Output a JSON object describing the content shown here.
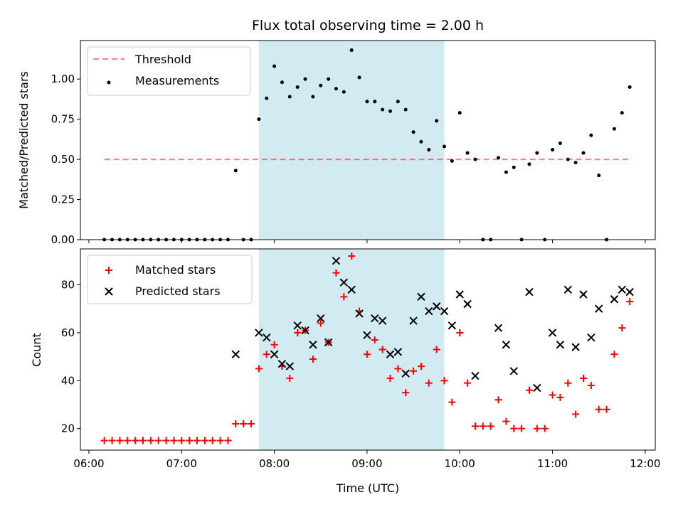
{
  "title": "Flux total observing time = 2.00 h",
  "colors": {
    "shade": "#add8e6",
    "threshold": "#ff0000",
    "measurement": "#000000",
    "matched": "#ff0000",
    "predicted": "#000000"
  },
  "chart_data": [
    {
      "type": "scatter",
      "ylabel": "Matched/Predicted stars",
      "ylim": [
        0,
        1.24
      ],
      "xlim": [
        "06:00",
        "12:00"
      ],
      "shaded_interval": [
        "07:50",
        "09:50"
      ],
      "yticks": [
        "0.00",
        "0.25",
        "0.50",
        "0.75",
        "1.00"
      ],
      "legend_position": "top-left",
      "threshold": {
        "name": "Threshold",
        "value": 0.5,
        "x_range": [
          "06:10",
          "11:50"
        ]
      },
      "series": [
        {
          "name": "Measurements",
          "points": [
            [
              "06:10",
              0
            ],
            [
              "06:15",
              0
            ],
            [
              "06:20",
              0
            ],
            [
              "06:25",
              0
            ],
            [
              "06:30",
              0
            ],
            [
              "06:35",
              0
            ],
            [
              "06:40",
              0
            ],
            [
              "06:45",
              0
            ],
            [
              "06:50",
              0
            ],
            [
              "06:55",
              0
            ],
            [
              "07:00",
              0
            ],
            [
              "07:05",
              0
            ],
            [
              "07:10",
              0
            ],
            [
              "07:15",
              0
            ],
            [
              "07:20",
              0
            ],
            [
              "07:25",
              0
            ],
            [
              "07:30",
              0
            ],
            [
              "07:35",
              0.43
            ],
            [
              "07:40",
              0
            ],
            [
              "07:45",
              0
            ],
            [
              "07:50",
              0.75
            ],
            [
              "07:55",
              0.88
            ],
            [
              "08:00",
              1.08
            ],
            [
              "08:05",
              0.98
            ],
            [
              "08:10",
              0.89
            ],
            [
              "08:15",
              0.95
            ],
            [
              "08:20",
              1.0
            ],
            [
              "08:25",
              0.89
            ],
            [
              "08:30",
              0.96
            ],
            [
              "08:35",
              1.0
            ],
            [
              "08:40",
              0.94
            ],
            [
              "08:45",
              0.92
            ],
            [
              "08:50",
              1.18
            ],
            [
              "08:55",
              1.01
            ],
            [
              "09:00",
              0.86
            ],
            [
              "09:05",
              0.86
            ],
            [
              "09:10",
              0.81
            ],
            [
              "09:15",
              0.8
            ],
            [
              "09:20",
              0.86
            ],
            [
              "09:25",
              0.81
            ],
            [
              "09:30",
              0.67
            ],
            [
              "09:35",
              0.61
            ],
            [
              "09:40",
              0.56
            ],
            [
              "09:45",
              0.74
            ],
            [
              "09:50",
              0.58
            ],
            [
              "09:55",
              0.49
            ],
            [
              "10:00",
              0.79
            ],
            [
              "10:05",
              0.54
            ],
            [
              "10:10",
              0.5
            ],
            [
              "10:15",
              0
            ],
            [
              "10:20",
              0
            ],
            [
              "10:25",
              0.51
            ],
            [
              "10:30",
              0.42
            ],
            [
              "10:35",
              0.45
            ],
            [
              "10:40",
              0
            ],
            [
              "10:45",
              0.47
            ],
            [
              "10:50",
              0.54
            ],
            [
              "10:55",
              0
            ],
            [
              "11:00",
              0.56
            ],
            [
              "11:05",
              0.6
            ],
            [
              "11:10",
              0.5
            ],
            [
              "11:15",
              0.48
            ],
            [
              "11:20",
              0.54
            ],
            [
              "11:25",
              0.65
            ],
            [
              "11:30",
              0.4
            ],
            [
              "11:35",
              0
            ],
            [
              "11:40",
              0.69
            ],
            [
              "11:45",
              0.79
            ],
            [
              "11:50",
              0.95
            ]
          ]
        }
      ]
    },
    {
      "type": "scatter",
      "xlabel": "Time (UTC)",
      "ylabel": "Count",
      "ylim": [
        11,
        95
      ],
      "xlim": [
        "06:00",
        "12:00"
      ],
      "shaded_interval": [
        "07:50",
        "09:50"
      ],
      "xticks": [
        "06:00",
        "07:00",
        "08:00",
        "09:00",
        "10:00",
        "11:00",
        "12:00"
      ],
      "yticks": [
        "20",
        "40",
        "60",
        "80"
      ],
      "legend_position": "top-left",
      "series": [
        {
          "name": "Matched stars",
          "points": [
            [
              "06:10",
              15
            ],
            [
              "06:15",
              15
            ],
            [
              "06:20",
              15
            ],
            [
              "06:25",
              15
            ],
            [
              "06:30",
              15
            ],
            [
              "06:35",
              15
            ],
            [
              "06:40",
              15
            ],
            [
              "06:45",
              15
            ],
            [
              "06:50",
              15
            ],
            [
              "06:55",
              15
            ],
            [
              "07:00",
              15
            ],
            [
              "07:05",
              15
            ],
            [
              "07:10",
              15
            ],
            [
              "07:15",
              15
            ],
            [
              "07:20",
              15
            ],
            [
              "07:25",
              15
            ],
            [
              "07:30",
              15
            ],
            [
              "07:35",
              22
            ],
            [
              "07:40",
              22
            ],
            [
              "07:45",
              22
            ],
            [
              "07:50",
              45
            ],
            [
              "07:55",
              51
            ],
            [
              "08:00",
              55
            ],
            [
              "08:05",
              46
            ],
            [
              "08:10",
              41
            ],
            [
              "08:15",
              60
            ],
            [
              "08:20",
              61
            ],
            [
              "08:25",
              49
            ],
            [
              "08:30",
              64
            ],
            [
              "08:35",
              56
            ],
            [
              "08:40",
              85
            ],
            [
              "08:45",
              75
            ],
            [
              "08:50",
              92
            ],
            [
              "08:55",
              69
            ],
            [
              "09:00",
              51
            ],
            [
              "09:05",
              57
            ],
            [
              "09:10",
              53
            ],
            [
              "09:15",
              41
            ],
            [
              "09:20",
              45
            ],
            [
              "09:25",
              35
            ],
            [
              "09:30",
              44
            ],
            [
              "09:35",
              46
            ],
            [
              "09:40",
              39
            ],
            [
              "09:45",
              53
            ],
            [
              "09:50",
              40
            ],
            [
              "09:55",
              31
            ],
            [
              "10:00",
              60
            ],
            [
              "10:05",
              39
            ],
            [
              "10:10",
              21
            ],
            [
              "10:15",
              21
            ],
            [
              "10:20",
              21
            ],
            [
              "10:25",
              32
            ],
            [
              "10:30",
              23
            ],
            [
              "10:35",
              20
            ],
            [
              "10:40",
              20
            ],
            [
              "10:45",
              36
            ],
            [
              "10:50",
              20
            ],
            [
              "10:55",
              20
            ],
            [
              "11:00",
              34
            ],
            [
              "11:05",
              33
            ],
            [
              "11:10",
              39
            ],
            [
              "11:15",
              26
            ],
            [
              "11:20",
              41
            ],
            [
              "11:25",
              38
            ],
            [
              "11:30",
              28
            ],
            [
              "11:35",
              28
            ],
            [
              "11:40",
              51
            ],
            [
              "11:45",
              62
            ],
            [
              "11:50",
              73
            ]
          ]
        },
        {
          "name": "Predicted stars",
          "points": [
            [
              "07:35",
              51
            ],
            [
              "07:50",
              60
            ],
            [
              "07:55",
              58
            ],
            [
              "08:00",
              51
            ],
            [
              "08:05",
              47
            ],
            [
              "08:10",
              46
            ],
            [
              "08:15",
              63
            ],
            [
              "08:20",
              61
            ],
            [
              "08:25",
              55
            ],
            [
              "08:30",
              66
            ],
            [
              "08:35",
              56
            ],
            [
              "08:40",
              90
            ],
            [
              "08:45",
              81
            ],
            [
              "08:50",
              78
            ],
            [
              "08:55",
              68
            ],
            [
              "09:00",
              59
            ],
            [
              "09:05",
              66
            ],
            [
              "09:10",
              65
            ],
            [
              "09:15",
              51
            ],
            [
              "09:20",
              52
            ],
            [
              "09:25",
              43
            ],
            [
              "09:30",
              65
            ],
            [
              "09:35",
              75
            ],
            [
              "09:40",
              69
            ],
            [
              "09:45",
              71
            ],
            [
              "09:50",
              69
            ],
            [
              "09:55",
              63
            ],
            [
              "10:00",
              76
            ],
            [
              "10:05",
              72
            ],
            [
              "10:10",
              42
            ],
            [
              "10:25",
              62
            ],
            [
              "10:30",
              55
            ],
            [
              "10:35",
              44
            ],
            [
              "10:45",
              77
            ],
            [
              "10:50",
              37
            ],
            [
              "11:00",
              60
            ],
            [
              "11:05",
              55
            ],
            [
              "11:10",
              78
            ],
            [
              "11:15",
              54
            ],
            [
              "11:20",
              76
            ],
            [
              "11:25",
              58
            ],
            [
              "11:30",
              70
            ],
            [
              "11:40",
              74
            ],
            [
              "11:45",
              78
            ],
            [
              "11:50",
              77
            ]
          ]
        }
      ]
    }
  ]
}
